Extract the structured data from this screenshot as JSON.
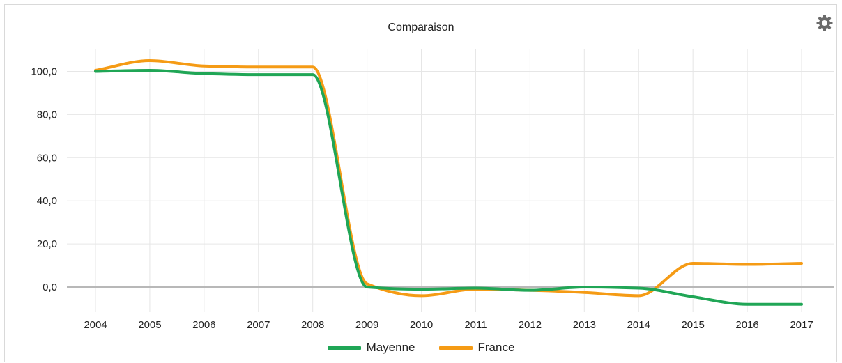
{
  "chart_data": {
    "type": "line",
    "title": "Comparaison",
    "xlabel": "",
    "ylabel": "",
    "x": [
      "2004",
      "2005",
      "2006",
      "2007",
      "2008",
      "2009",
      "2010",
      "2011",
      "2012",
      "2013",
      "2014",
      "2015",
      "2016",
      "2017"
    ],
    "yticks": [
      "100,0",
      "80,0",
      "60,0",
      "40,0",
      "20,0",
      "0,0"
    ],
    "ylim": [
      -10,
      110
    ],
    "grid": true,
    "legend_position": "bottom",
    "series": [
      {
        "name": "Mayenne",
        "color": "#20a656",
        "values": [
          100.0,
          100.5,
          99.0,
          98.5,
          98.5,
          0.0,
          -1.0,
          -0.5,
          -1.5,
          0.0,
          -0.5,
          -4.5,
          -8.0,
          -8.0
        ]
      },
      {
        "name": "France",
        "color": "#f59b15",
        "values": [
          100.5,
          105.0,
          102.5,
          102.0,
          102.0,
          1.5,
          -4.0,
          -1.0,
          -1.5,
          -2.5,
          -4.0,
          11.0,
          10.5,
          11.0
        ]
      }
    ]
  },
  "icons": {
    "settings": "gear-icon"
  }
}
